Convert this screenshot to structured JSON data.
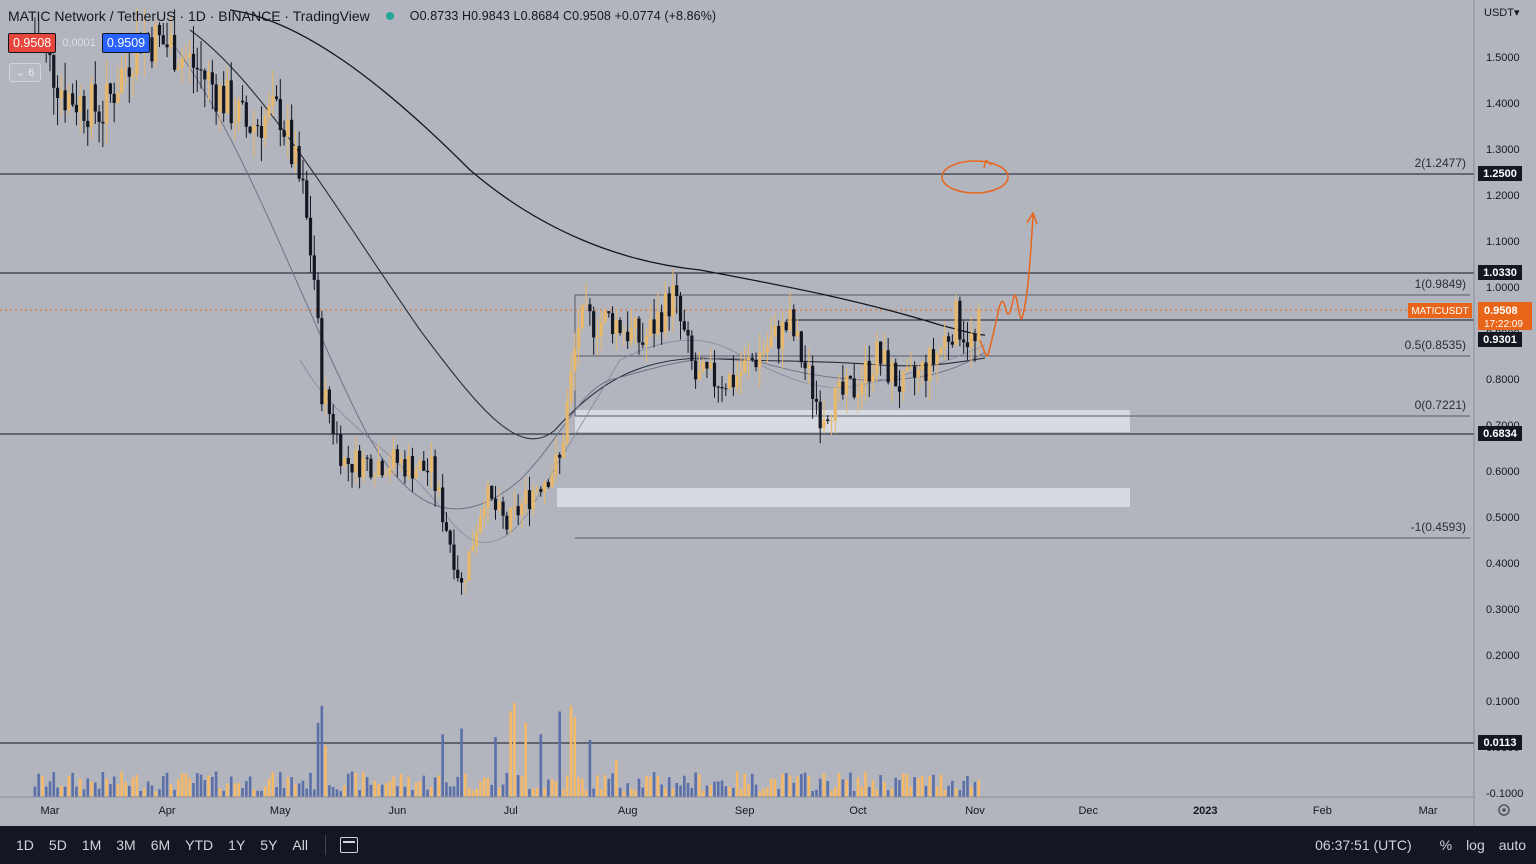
{
  "header": {
    "symbol_title": "MATIC Network / TetherUS · 1D · BINANCE · TradingView",
    "ohlc": "O0.8733 H0.9843 L0.8684 C0.9508 +0.0774 (+8.86%)",
    "sell_price": "0.9508",
    "spread": "0.0001",
    "buy_price": "0.9509",
    "indicator_count": "6"
  },
  "price_axis": {
    "currency": "USDT",
    "ticks": [
      "1.5000",
      "1.4000",
      "1.3000",
      "1.2000",
      "1.1000",
      "1.0000",
      "0.9000",
      "0.8000",
      "0.7000",
      "0.6000",
      "0.5000",
      "0.4000",
      "0.3000",
      "0.2000",
      "0.1000",
      "0.0000",
      "-0.1000"
    ]
  },
  "time_axis": {
    "labels": [
      "Mar",
      "Apr",
      "May",
      "Jun",
      "Jul",
      "Aug",
      "Sep",
      "Oct",
      "Nov",
      "Dec",
      "2023",
      "Feb",
      "Mar"
    ]
  },
  "badges": {
    "level_1250": "1.2500",
    "level_1033": "1.0330",
    "ticker": "MATICUSDT",
    "last_price": "0.9508",
    "countdown": "17:22:09",
    "level_0930": "0.9301",
    "level_0683": "0.6834",
    "volume_level": "0.0113"
  },
  "fib_labels": {
    "f2": "2(1.2477)",
    "f1": "1(0.9849)",
    "f05": "0.5(0.8535)",
    "f0": "0(0.7221)",
    "fm1": "-1(0.4593)"
  },
  "toolbar": {
    "ranges": [
      "1D",
      "5D",
      "1M",
      "3M",
      "6M",
      "YTD",
      "1Y",
      "5Y",
      "All"
    ],
    "clock": "06:37:51 (UTC)",
    "percent": "%",
    "log": "log",
    "auto": "auto"
  },
  "colors": {
    "background": "#b2b5be",
    "candle_up": "#e8b86a",
    "candle_down": "#131722",
    "volume_up": "#f5b968",
    "volume_down": "#5b6fa8",
    "annotation": "#e8651a",
    "toolbar_bg": "#131722"
  },
  "chart_data": {
    "type": "candlestick",
    "symbol": "MATICUSDT",
    "interval": "1D",
    "ylim": [
      -0.1,
      1.55
    ],
    "x_months": [
      "Mar",
      "Apr",
      "May",
      "Jun",
      "Jul",
      "Aug",
      "Sep",
      "Oct",
      "Nov"
    ],
    "price_path_close": [
      [
        "2022-02-25",
        1.55
      ],
      [
        "2022-03-05",
        1.42
      ],
      [
        "2022-03-15",
        1.38
      ],
      [
        "2022-03-25",
        1.55
      ],
      [
        "2022-04-03",
        1.52
      ],
      [
        "2022-04-12",
        1.45
      ],
      [
        "2022-04-22",
        1.35
      ],
      [
        "2022-05-01",
        1.38
      ],
      [
        "2022-05-07",
        1.2
      ],
      [
        "2022-05-10",
        1.02
      ],
      [
        "2022-05-12",
        0.78
      ],
      [
        "2022-05-18",
        0.62
      ],
      [
        "2022-06-01",
        0.62
      ],
      [
        "2022-06-10",
        0.6
      ],
      [
        "2022-06-14",
        0.48
      ],
      [
        "2022-06-18",
        0.35
      ],
      [
        "2022-06-24",
        0.55
      ],
      [
        "2022-06-30",
        0.48
      ],
      [
        "2022-07-08",
        0.57
      ],
      [
        "2022-07-14",
        0.62
      ],
      [
        "2022-07-19",
        0.92
      ],
      [
        "2022-07-28",
        0.93
      ],
      [
        "2022-08-05",
        0.88
      ],
      [
        "2022-08-13",
        0.98
      ],
      [
        "2022-08-19",
        0.8
      ],
      [
        "2022-08-29",
        0.8
      ],
      [
        "2022-09-08",
        0.88
      ],
      [
        "2022-09-13",
        0.92
      ],
      [
        "2022-09-21",
        0.73
      ],
      [
        "2022-09-30",
        0.78
      ],
      [
        "2022-10-06",
        0.85
      ],
      [
        "2022-10-13",
        0.78
      ],
      [
        "2022-10-21",
        0.84
      ],
      [
        "2022-10-27",
        0.93
      ],
      [
        "2022-11-01",
        0.87
      ],
      [
        "2022-11-02",
        0.9508
      ]
    ],
    "horizontal_levels": [
      1.25,
      1.033,
      0.9301,
      0.6834
    ],
    "fibonacci": {
      "2": 1.2477,
      "1": 0.9849,
      "0.5": 0.8535,
      "0": 0.7221,
      "-1": 0.4593
    },
    "zones": [
      [
        0.685,
        0.735
      ],
      [
        0.52,
        0.565
      ]
    ],
    "volume_level": 0.0113
  }
}
